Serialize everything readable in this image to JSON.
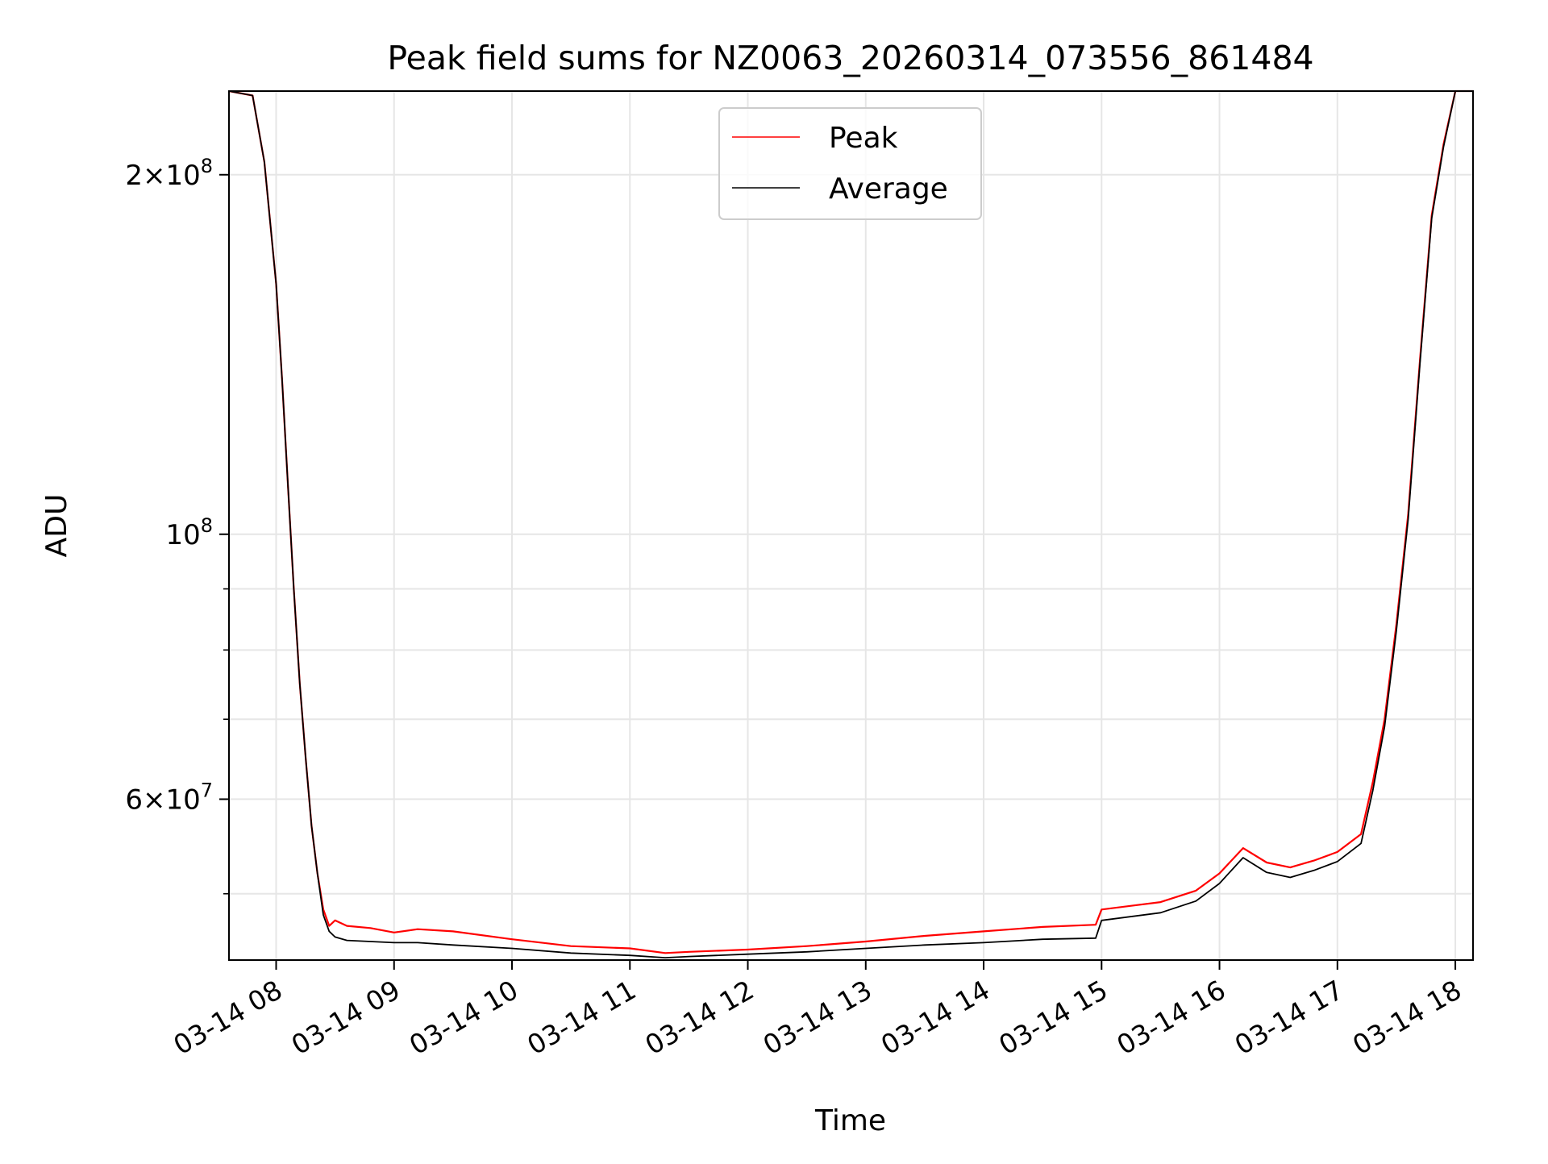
{
  "chart_data": {
    "type": "line",
    "title": "Peak field sums for NZ0063_20260314_073556_861484",
    "xlabel": "Time",
    "ylabel": "ADU",
    "yscale": "log",
    "grid": true,
    "legend_position": "upper-center",
    "xlim_hours": [
      7.6,
      18.15
    ],
    "ylim": [
      44000000,
      235000000
    ],
    "x_ticks": [
      {
        "hour": 8,
        "label": "03-14 08"
      },
      {
        "hour": 9,
        "label": "03-14 09"
      },
      {
        "hour": 10,
        "label": "03-14 10"
      },
      {
        "hour": 11,
        "label": "03-14 11"
      },
      {
        "hour": 12,
        "label": "03-14 12"
      },
      {
        "hour": 13,
        "label": "03-14 13"
      },
      {
        "hour": 14,
        "label": "03-14 14"
      },
      {
        "hour": 15,
        "label": "03-14 15"
      },
      {
        "hour": 16,
        "label": "03-14 16"
      },
      {
        "hour": 17,
        "label": "03-14 17"
      },
      {
        "hour": 18,
        "label": "03-14 18"
      }
    ],
    "y_major_ticks": [
      {
        "value": 60000000,
        "mant": "6",
        "exp": "7"
      },
      {
        "value": 100000000,
        "mant": "",
        "exp": "8"
      },
      {
        "value": 200000000,
        "mant": "2",
        "exp": "8"
      }
    ],
    "y_minor_ticks": [
      50000000,
      70000000,
      80000000,
      90000000
    ],
    "x_units_hour_of_day": [
      7.6,
      7.8,
      7.9,
      8.0,
      8.05,
      8.1,
      8.15,
      8.2,
      8.25,
      8.3,
      8.35,
      8.4,
      8.45,
      8.5,
      8.6,
      8.8,
      9.0,
      9.2,
      9.5,
      10.0,
      10.5,
      11.0,
      11.3,
      11.5,
      12.0,
      12.5,
      13.0,
      13.5,
      14.0,
      14.5,
      14.95,
      15.0,
      15.5,
      15.8,
      16.0,
      16.2,
      16.4,
      16.6,
      16.8,
      17.0,
      17.2,
      17.3,
      17.4,
      17.5,
      17.6,
      17.7,
      17.8,
      17.9,
      18.0,
      18.15
    ],
    "series": [
      {
        "name": "Peak",
        "color": "#ff0000",
        "values": [
          235000000,
          233000000,
          205000000,
          162000000,
          135000000,
          110000000,
          90000000,
          75000000,
          65000000,
          57000000,
          52000000,
          48500000,
          47000000,
          47500000,
          47000000,
          46800000,
          46400000,
          46700000,
          46500000,
          45800000,
          45200000,
          45000000,
          44600000,
          44700000,
          44900000,
          45200000,
          45600000,
          46100000,
          46500000,
          46900000,
          47100000,
          48500000,
          49200000,
          50300000,
          52000000,
          54600000,
          53100000,
          52600000,
          53300000,
          54200000,
          56100000,
          62000000,
          70000000,
          84000000,
          104000000,
          140000000,
          185000000,
          212000000,
          235000000,
          235000000
        ]
      },
      {
        "name": "Average",
        "color": "#000000",
        "values": [
          235000000,
          233000000,
          205000000,
          162000000,
          135000000,
          110000000,
          90000000,
          75000000,
          65000000,
          57000000,
          52000000,
          48000000,
          46500000,
          46000000,
          45700000,
          45600000,
          45500000,
          45500000,
          45300000,
          45000000,
          44600000,
          44400000,
          44200000,
          44300000,
          44500000,
          44700000,
          45000000,
          45300000,
          45500000,
          45800000,
          45900000,
          47500000,
          48200000,
          49300000,
          51000000,
          53600000,
          52100000,
          51600000,
          52300000,
          53200000,
          55100000,
          61000000,
          69000000,
          83000000,
          103000000,
          139000000,
          184000000,
          211000000,
          235000000,
          235000000
        ]
      }
    ]
  }
}
